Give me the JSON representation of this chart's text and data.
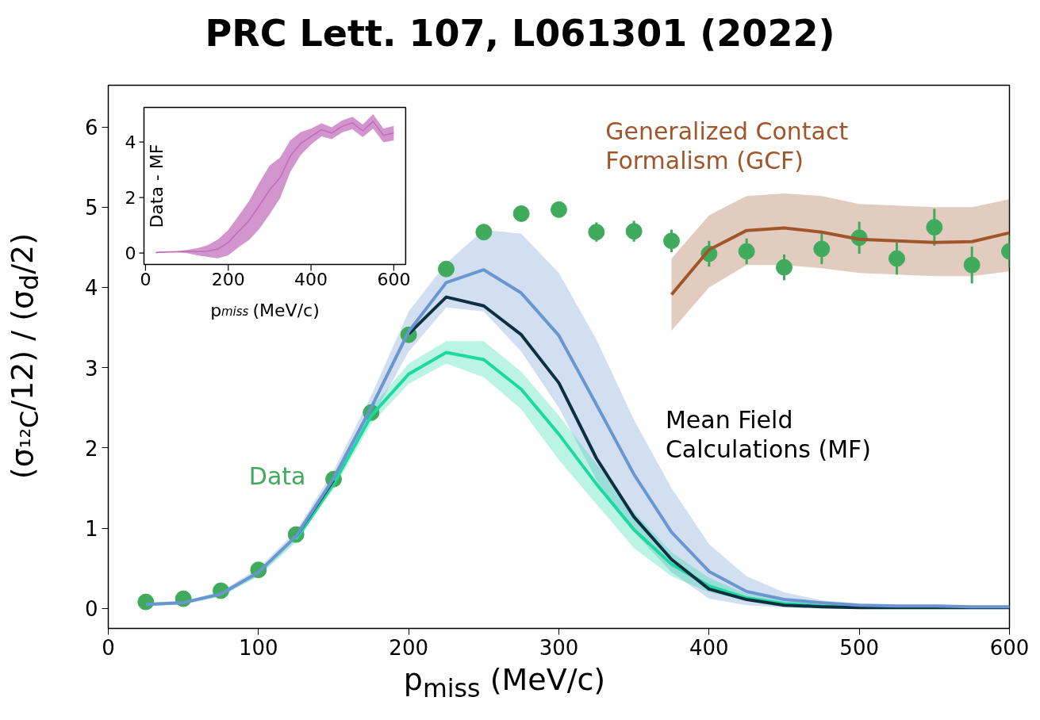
{
  "chart_data": [
    {
      "type": "line",
      "title": "PRC Lett. 107, L061301 (2022)",
      "xlabel": "p$_{miss}$ (MeV/c)",
      "ylabel": "(σ$_{¹²C}$/12) / (σ$_{d}$/2)",
      "x": [
        25,
        50,
        75,
        100,
        125,
        150,
        175,
        200,
        225,
        250,
        275,
        300,
        325,
        350,
        375,
        400,
        425,
        450,
        475,
        500,
        525,
        550,
        575,
        600
      ],
      "xlim": [
        0,
        600
      ],
      "ylim": [
        -0.25,
        6.52
      ],
      "xticks": [
        0,
        100,
        200,
        300,
        400,
        500,
        600
      ],
      "yticks": [
        0,
        1,
        2,
        3,
        4,
        5,
        6
      ],
      "grid": false,
      "annotations": [
        "Mean Field Calculations (MF)"
      ],
      "series": [
        {
          "type": "line",
          "color": "#6a96d0",
          "values": [
            0.05,
            0.07,
            0.18,
            0.45,
            0.9,
            1.62,
            2.5,
            3.45,
            4.06,
            4.22,
            3.93,
            3.4,
            2.54,
            1.67,
            0.95,
            0.46,
            0.21,
            0.11,
            0.07,
            0.04,
            0.03,
            0.03,
            0.02,
            0.02
          ],
          "lower": [
            0.03,
            0.05,
            0.15,
            0.41,
            0.85,
            1.53,
            2.35,
            3.2,
            3.75,
            3.7,
            3.2,
            2.5,
            1.6,
            0.95,
            0.45,
            0.12,
            0.04,
            0.01,
            0.0,
            0.0,
            0.0,
            0.0,
            0.0,
            0.0
          ],
          "upper": [
            0.07,
            0.09,
            0.21,
            0.5,
            0.96,
            1.72,
            2.65,
            3.7,
            4.3,
            4.72,
            4.67,
            4.18,
            3.35,
            2.35,
            1.5,
            0.8,
            0.4,
            0.2,
            0.1,
            0.06,
            0.05,
            0.05,
            0.04,
            0.04
          ]
        },
        {
          "type": "line",
          "color": "#0d3040",
          "values": [
            null,
            null,
            null,
            null,
            0.9,
            1.6,
            null,
            3.42,
            3.88,
            3.77,
            3.41,
            2.81,
            1.87,
            1.14,
            0.61,
            0.24,
            0.11,
            0.04,
            0.02,
            0.01,
            0.01,
            0.01,
            0.01,
            0.01
          ]
        },
        {
          "type": "line",
          "color": "#1dd9a0",
          "values": [
            null,
            null,
            null,
            null,
            0.86,
            1.55,
            2.4,
            2.92,
            3.19,
            3.1,
            2.73,
            2.17,
            1.55,
            0.98,
            0.55,
            0.28,
            0.13,
            0.06,
            0.03,
            0.02,
            null,
            null,
            null,
            null
          ],
          "lower": [
            0.03,
            0.05,
            0.15,
            0.4,
            0.82,
            1.49,
            2.3,
            2.8,
            3.05,
            2.88,
            2.48,
            1.85,
            1.3,
            0.75,
            0.4,
            0.2,
            0.1,
            0.04,
            0.02,
            0.01,
            0.01,
            0.01,
            0.01,
            0.01
          ],
          "upper": [
            0.05,
            0.07,
            0.19,
            0.46,
            0.9,
            1.61,
            2.5,
            3.05,
            3.33,
            3.33,
            2.95,
            2.4,
            1.8,
            1.2,
            0.7,
            0.38,
            0.18,
            0.09,
            0.05,
            0.03,
            0.03,
            0.03,
            0.03,
            0.03
          ]
        },
        {
          "type": "line",
          "name": "Generalized Contact Formalism (GCF)",
          "color": "#a0562a",
          "x": [
            375,
            400,
            425,
            450,
            475,
            500,
            525,
            550,
            575,
            600
          ],
          "values": [
            3.91,
            4.47,
            4.71,
            4.74,
            4.69,
            4.6,
            4.58,
            4.56,
            4.57,
            4.68
          ],
          "lower": [
            3.46,
            4.0,
            4.28,
            4.28,
            4.24,
            4.18,
            4.16,
            4.14,
            4.14,
            4.2
          ],
          "upper": [
            4.36,
            4.9,
            5.14,
            5.17,
            5.14,
            5.04,
            5.02,
            5.0,
            5.0,
            5.1
          ]
        },
        {
          "type": "scatter",
          "name": "Data",
          "color": "#41ab5d",
          "marker": "circle",
          "values": [
            0.08,
            0.12,
            0.22,
            0.48,
            0.92,
            1.61,
            2.44,
            3.41,
            4.23,
            4.69,
            4.92,
            4.97,
            4.69,
            4.7,
            4.58,
            4.42,
            4.45,
            4.25,
            4.48,
            4.62,
            4.36,
            4.75,
            4.28,
            4.45
          ],
          "errors": [
            null,
            null,
            null,
            null,
            null,
            null,
            null,
            null,
            null,
            null,
            0.05,
            0.08,
            0.12,
            0.13,
            0.14,
            0.16,
            0.16,
            0.16,
            0.19,
            0.2,
            0.2,
            0.23,
            0.23,
            0.2
          ]
        }
      ]
    },
    {
      "type": "line",
      "xlabel": "p$_{miss}$ (MeV/c)",
      "ylabel": "Data - MF",
      "x": [
        25,
        50,
        75,
        100,
        125,
        150,
        175,
        200,
        225,
        250,
        275,
        300,
        325,
        350,
        375,
        400,
        425,
        450,
        475,
        500,
        525,
        550,
        575,
        600
      ],
      "xlim": [
        -3.75,
        628.75
      ],
      "ylim": [
        -0.41,
        5.24
      ],
      "xticks": [
        0,
        200,
        400,
        600
      ],
      "yticks": [
        0,
        2,
        4
      ],
      "series": [
        {
          "color": "#c06cba",
          "values": [
            0.02,
            0.04,
            0.05,
            0.06,
            0.05,
            0.07,
            0.15,
            0.38,
            0.78,
            1.17,
            1.71,
            2.28,
            2.71,
            3.49,
            3.95,
            4.2,
            4.44,
            4.32,
            4.56,
            4.69,
            4.4,
            4.74,
            4.24,
            4.32
          ],
          "lower": [
            0.0,
            0.02,
            0.03,
            0.0,
            -0.08,
            -0.14,
            -0.19,
            -0.08,
            0.21,
            0.47,
            0.87,
            1.4,
            1.97,
            2.92,
            3.53,
            3.91,
            4.2,
            4.1,
            4.34,
            4.46,
            4.17,
            4.48,
            3.99,
            4.06
          ],
          "upper": [
            0.04,
            0.06,
            0.07,
            0.11,
            0.18,
            0.28,
            0.49,
            0.83,
            1.35,
            1.87,
            2.54,
            3.15,
            3.44,
            4.06,
            4.36,
            4.48,
            4.67,
            4.53,
            4.77,
            4.91,
            4.63,
            5.0,
            4.48,
            4.58
          ]
        }
      ]
    }
  ]
}
